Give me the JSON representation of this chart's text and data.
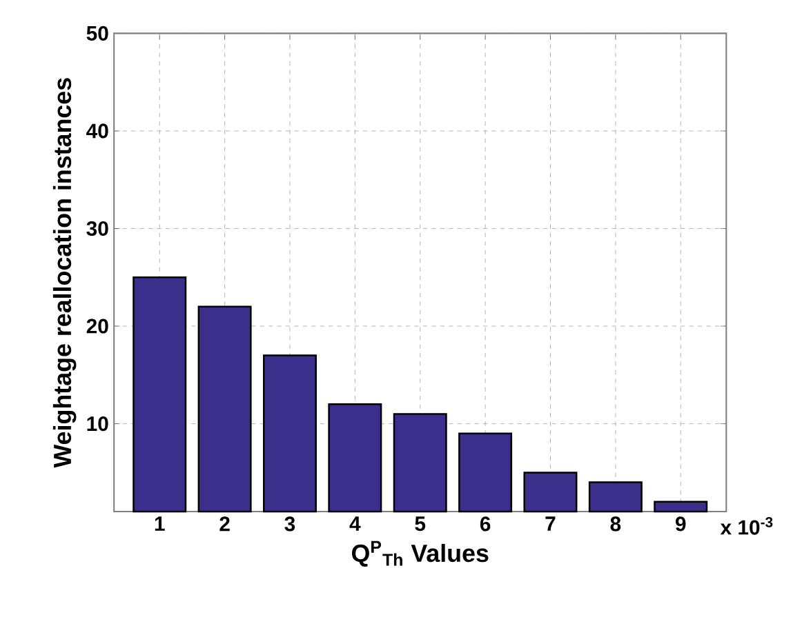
{
  "chart_data": {
    "type": "bar",
    "xlabel": "Q$^{P}$$_{Th}$ Values",
    "ylabel": "Weightage reallocation instances",
    "categories": [
      "1",
      "2",
      "3",
      "4",
      "5",
      "6",
      "7",
      "8",
      "9"
    ],
    "values": [
      25,
      22,
      17,
      12,
      11,
      9,
      5,
      4,
      2
    ],
    "color": "#3a2f8a",
    "ylim": [
      1,
      50
    ],
    "yticks": [
      10,
      20,
      30,
      40,
      50
    ],
    "grid": true,
    "annotations": [
      "x 10$^{-3}$"
    ]
  }
}
